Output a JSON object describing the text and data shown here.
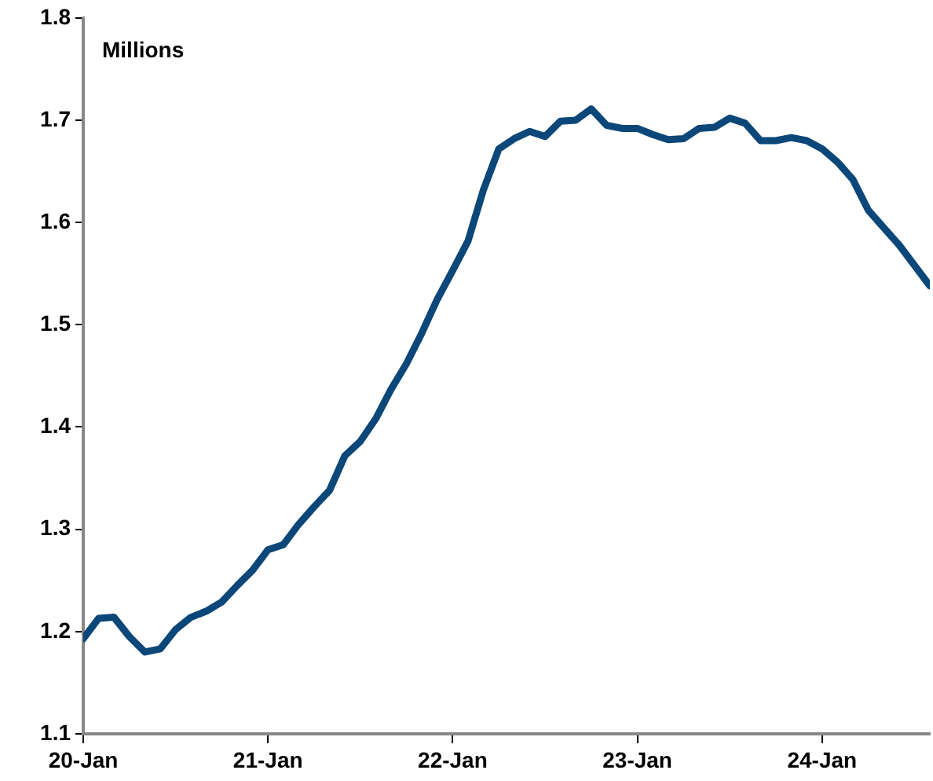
{
  "chart_data": {
    "type": "line",
    "annotations": [
      "Millions"
    ],
    "x": [
      "2020-01",
      "2020-02",
      "2020-03",
      "2020-04",
      "2020-05",
      "2020-06",
      "2020-07",
      "2020-08",
      "2020-09",
      "2020-10",
      "2020-11",
      "2020-12",
      "2021-01",
      "2021-02",
      "2021-03",
      "2021-04",
      "2021-05",
      "2021-06",
      "2021-07",
      "2021-08",
      "2021-09",
      "2021-10",
      "2021-11",
      "2021-12",
      "2022-01",
      "2022-02",
      "2022-03",
      "2022-04",
      "2022-05",
      "2022-06",
      "2022-07",
      "2022-08",
      "2022-09",
      "2022-10",
      "2022-11",
      "2022-12",
      "2023-01",
      "2023-02",
      "2023-03",
      "2023-04",
      "2023-05",
      "2023-06",
      "2023-07",
      "2023-08",
      "2023-09",
      "2023-10",
      "2023-11",
      "2023-12",
      "2024-01",
      "2024-02",
      "2024-03",
      "2024-04",
      "2024-05",
      "2024-06",
      "2024-07",
      "2024-08"
    ],
    "series": [
      {
        "color": "#0b4778",
        "values": [
          1.193,
          1.213,
          1.214,
          1.195,
          1.18,
          1.183,
          1.202,
          1.214,
          1.22,
          1.229,
          1.245,
          1.26,
          1.28,
          1.285,
          1.305,
          1.322,
          1.338,
          1.372,
          1.386,
          1.408,
          1.437,
          1.462,
          1.492,
          1.525,
          1.553,
          1.582,
          1.632,
          1.672,
          1.682,
          1.689,
          1.684,
          1.699,
          1.7,
          1.711,
          1.695,
          1.692,
          1.692,
          1.686,
          1.681,
          1.682,
          1.692,
          1.693,
          1.702,
          1.697,
          1.68,
          1.68,
          1.683,
          1.68,
          1.672,
          1.659,
          1.642,
          1.612,
          1.595,
          1.578,
          1.558,
          1.538
        ]
      }
    ],
    "xlim": [
      "2020-01",
      "2024-08"
    ],
    "xticks": [
      {
        "value": "2020-01",
        "label": "20-Jan"
      },
      {
        "value": "2021-01",
        "label": "21-Jan"
      },
      {
        "value": "2022-01",
        "label": "22-Jan"
      },
      {
        "value": "2023-01",
        "label": "23-Jan"
      },
      {
        "value": "2024-01",
        "label": "24-Jan"
      }
    ],
    "ylim": [
      1.1,
      1.8
    ],
    "yticks": [
      {
        "value": 1.1,
        "label": "1.1"
      },
      {
        "value": 1.2,
        "label": "1.2"
      },
      {
        "value": 1.3,
        "label": "1.3"
      },
      {
        "value": 1.4,
        "label": "1.4"
      },
      {
        "value": 1.5,
        "label": "1.5"
      },
      {
        "value": 1.6,
        "label": "1.6"
      },
      {
        "value": 1.7,
        "label": "1.7"
      },
      {
        "value": 1.8,
        "label": "1.8"
      }
    ],
    "grid": false,
    "legend": false,
    "marker": "none",
    "line_style": "solid"
  }
}
